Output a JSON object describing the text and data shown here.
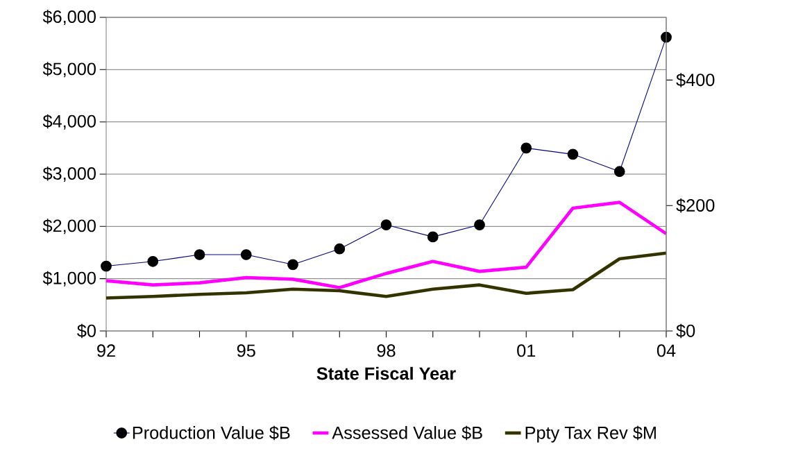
{
  "chart_data": {
    "type": "line",
    "xlabel": "State Fiscal Year",
    "categories": [
      "92",
      null,
      null,
      "95",
      null,
      null,
      "98",
      null,
      null,
      "01",
      null,
      null,
      "04"
    ],
    "series": [
      {
        "name": "Production Value $B",
        "color": "#000080",
        "marker": "circle",
        "values": [
          1240,
          1330,
          1460,
          1460,
          1270,
          1570,
          2030,
          1800,
          2030,
          3500,
          3380,
          3050,
          5620
        ]
      },
      {
        "name": "Assessed Value $B",
        "color": "#ff00ff",
        "marker": "none",
        "values": [
          960,
          880,
          920,
          1020,
          990,
          830,
          1100,
          1330,
          1140,
          1220,
          2350,
          2460,
          1860
        ]
      },
      {
        "name": "Ppty Tax Rev $M",
        "color": "#333300",
        "marker": "none",
        "values": [
          630,
          660,
          700,
          730,
          800,
          770,
          660,
          800,
          880,
          720,
          790,
          1380,
          1490
        ]
      }
    ],
    "ylim": [
      0,
      6000
    ],
    "yticks": [
      {
        "value": 0,
        "label": "$0"
      },
      {
        "value": 1000,
        "label": "$1,000"
      },
      {
        "value": 2000,
        "label": "$2,000"
      },
      {
        "value": 3000,
        "label": "$3,000"
      },
      {
        "value": 4000,
        "label": "$4,000"
      },
      {
        "value": 5000,
        "label": "$5,000"
      },
      {
        "value": 6000,
        "label": "$6,000"
      }
    ],
    "y2lim": [
      0,
      500
    ],
    "y2ticks": [
      {
        "value": 0,
        "label": "$0"
      },
      {
        "value": 200,
        "label": "$200"
      },
      {
        "value": 400,
        "label": "$400"
      }
    ],
    "grid": "y",
    "legend": "bottom"
  }
}
